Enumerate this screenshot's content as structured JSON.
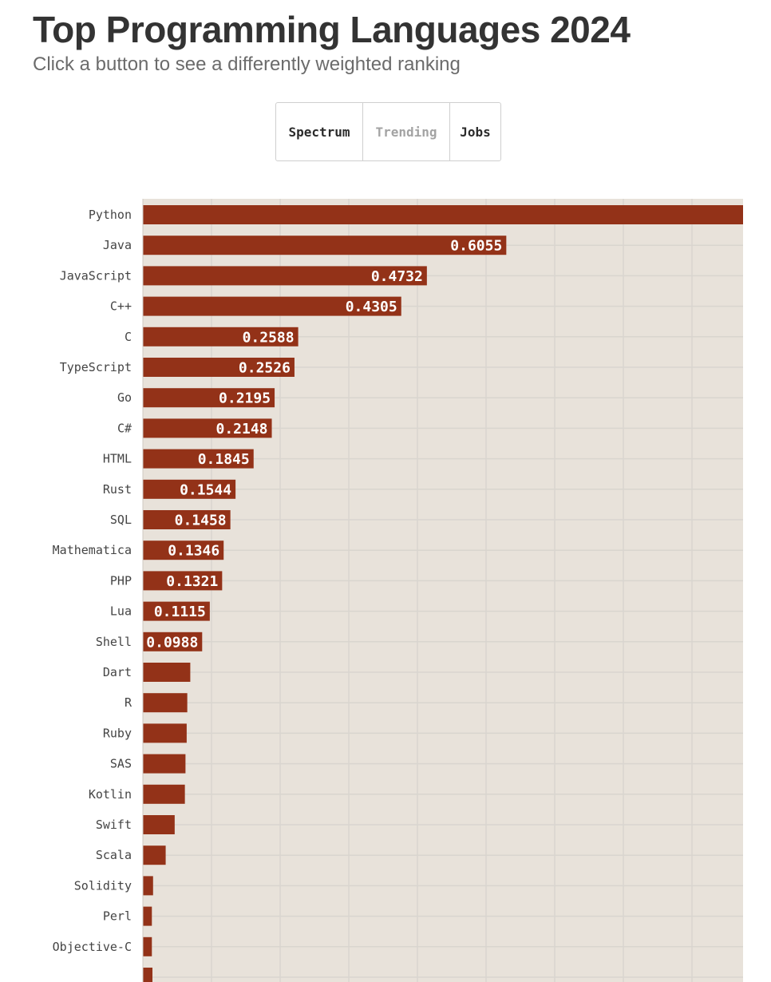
{
  "header": {
    "title": "Top Programming Languages 2024",
    "subtitle": "Click a button to see a differently weighted ranking"
  },
  "buttons": [
    {
      "label": "Spectrum"
    },
    {
      "label": "Trending"
    },
    {
      "label": "Jobs"
    }
  ],
  "colors": {
    "bar": "#933218",
    "plot_background": "#e8e2da",
    "grid": "#d9d5cf"
  },
  "chart_data": {
    "type": "bar",
    "orientation": "horizontal",
    "categories": [
      "Python",
      "Java",
      "JavaScript",
      "C++",
      "C",
      "TypeScript",
      "Go",
      "C#",
      "HTML",
      "Rust",
      "SQL",
      "Mathematica",
      "PHP",
      "Lua",
      "Shell",
      "Dart",
      "R",
      "Ruby",
      "SAS",
      "Kotlin",
      "Swift",
      "Scala",
      "Solidity",
      "Perl",
      "Objective-C"
    ],
    "values": [
      1.0,
      0.6055,
      0.4732,
      0.4305,
      0.2588,
      0.2526,
      0.2195,
      0.2148,
      0.1845,
      0.1544,
      0.1458,
      0.1346,
      0.1321,
      0.1115,
      0.0988,
      0.079,
      0.074,
      0.073,
      0.071,
      0.07,
      0.053,
      0.038,
      0.017,
      0.015,
      0.015
    ],
    "value_labels": [
      "",
      "0.6055",
      "0.4732",
      "0.4305",
      "0.2588",
      "0.2526",
      "0.2195",
      "0.2148",
      "0.1845",
      "0.1544",
      "0.1458",
      "0.1346",
      "0.1321",
      "0.1115",
      "0.0988",
      "",
      "",
      "",
      "",
      "",
      "",
      "",
      "",
      "",
      ""
    ],
    "xlim": [
      0,
      1.0
    ],
    "grid": true
  }
}
